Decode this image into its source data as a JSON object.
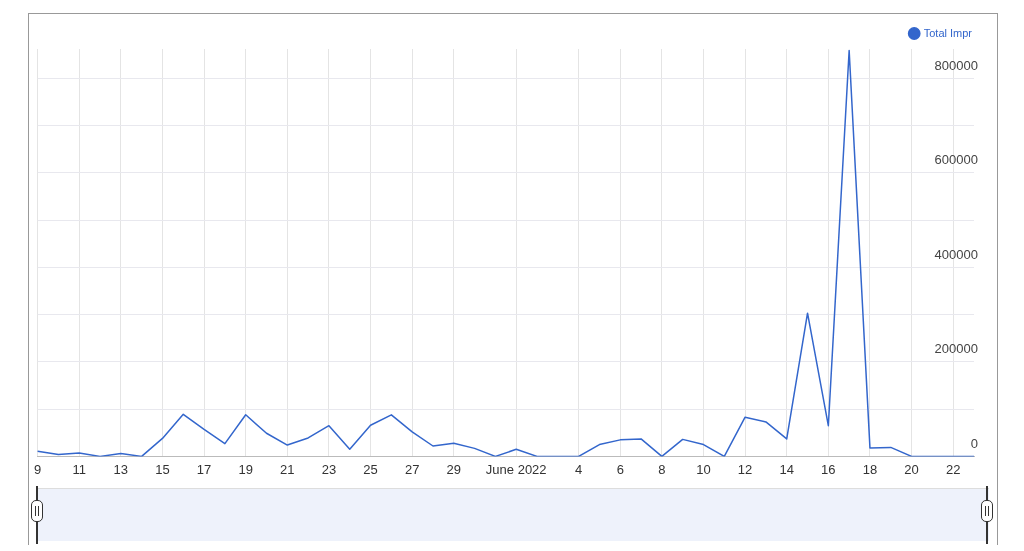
{
  "chart_data": {
    "type": "line",
    "categories": [
      "9",
      null,
      "11",
      null,
      "13",
      null,
      "15",
      null,
      "17",
      null,
      "19",
      null,
      "21",
      null,
      "23",
      null,
      "25",
      null,
      "27",
      null,
      "29",
      null,
      null,
      "June 2022",
      null,
      null,
      "4",
      null,
      "6",
      null,
      "8",
      null,
      "10",
      null,
      "12",
      null,
      "14",
      null,
      "16",
      null,
      "18",
      null,
      "20",
      null,
      "22",
      null
    ],
    "series": [
      {
        "name": "Total Impr",
        "color": "#3366cc",
        "values": [
          11000,
          4000,
          7000,
          0,
          6000,
          0,
          38000,
          89000,
          57000,
          27000,
          88000,
          49000,
          24000,
          39000,
          65000,
          15000,
          66000,
          88000,
          52000,
          22000,
          28000,
          17000,
          0,
          15000,
          0,
          0,
          0,
          25000,
          35000,
          37000,
          0,
          36000,
          25000,
          0,
          83000,
          73000,
          37000,
          303000,
          65000,
          859000,
          18000,
          19000,
          0,
          0,
          0,
          0
        ]
      }
    ],
    "ylim": [
      0,
      862000
    ],
    "yticks": [
      0,
      {
        "value": 100000,
        "label": null
      },
      200000,
      {
        "value": 300000,
        "label": null
      },
      400000,
      {
        "value": 500000,
        "label": null
      },
      600000,
      {
        "value": 700000,
        "label": null
      },
      800000
    ],
    "grid": true,
    "legend": "top right",
    "marker": "none"
  }
}
